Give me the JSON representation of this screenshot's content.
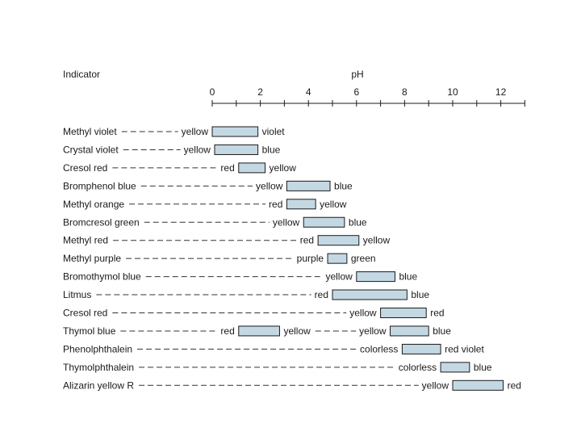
{
  "header": {
    "indicator_label": "Indicator",
    "ph_label": "pH"
  },
  "axis": {
    "min": 0,
    "max": 13,
    "ticks": [
      0,
      2,
      4,
      6,
      8,
      10,
      12
    ],
    "minor_step": 1
  },
  "colors": {
    "bar_fill": "#c4d8e4",
    "bar_stroke": "#1a1a1a"
  },
  "chart_data": {
    "type": "range",
    "xlabel": "pH",
    "xlim": [
      0,
      13
    ],
    "indicators": [
      {
        "name": "Methyl violet",
        "ranges": [
          {
            "from": 0.0,
            "to": 1.9,
            "low": "yellow",
            "high": "violet"
          }
        ]
      },
      {
        "name": "Crystal violet",
        "ranges": [
          {
            "from": 0.1,
            "to": 1.9,
            "low": "yellow",
            "high": "blue"
          }
        ]
      },
      {
        "name": "Cresol red",
        "ranges": [
          {
            "from": 1.1,
            "to": 2.2,
            "low": "red",
            "high": "yellow"
          }
        ]
      },
      {
        "name": "Bromphenol blue",
        "ranges": [
          {
            "from": 3.1,
            "to": 4.9,
            "low": "yellow",
            "high": "blue"
          }
        ]
      },
      {
        "name": "Methyl orange",
        "ranges": [
          {
            "from": 3.1,
            "to": 4.3,
            "low": "red",
            "high": "yellow"
          }
        ]
      },
      {
        "name": "Bromcresol green",
        "ranges": [
          {
            "from": 3.8,
            "to": 5.5,
            "low": "yellow",
            "high": "blue"
          }
        ]
      },
      {
        "name": "Methyl red",
        "ranges": [
          {
            "from": 4.4,
            "to": 6.1,
            "low": "red",
            "high": "yellow"
          }
        ]
      },
      {
        "name": "Methyl purple",
        "ranges": [
          {
            "from": 4.8,
            "to": 5.6,
            "low": "purple",
            "high": "green"
          }
        ]
      },
      {
        "name": "Bromothymol blue",
        "ranges": [
          {
            "from": 6.0,
            "to": 7.6,
            "low": "yellow",
            "high": "blue"
          }
        ]
      },
      {
        "name": "Litmus",
        "ranges": [
          {
            "from": 5.0,
            "to": 8.1,
            "low": "red",
            "high": "blue"
          }
        ]
      },
      {
        "name": "Cresol red",
        "ranges": [
          {
            "from": 7.0,
            "to": 8.9,
            "low": "yellow",
            "high": "red"
          }
        ]
      },
      {
        "name": "Thymol blue",
        "ranges": [
          {
            "from": 1.1,
            "to": 2.8,
            "low": "red",
            "high": "yellow"
          },
          {
            "from": 7.4,
            "to": 9.0,
            "low": "yellow",
            "high": "blue"
          }
        ]
      },
      {
        "name": "Phenolphthalein",
        "ranges": [
          {
            "from": 7.9,
            "to": 9.5,
            "low": "colorless",
            "high": "red violet"
          }
        ]
      },
      {
        "name": "Thymolphthalein",
        "ranges": [
          {
            "from": 9.5,
            "to": 10.7,
            "low": "colorless",
            "high": "blue"
          }
        ]
      },
      {
        "name": "Alizarin yellow R",
        "ranges": [
          {
            "from": 10.0,
            "to": 12.1,
            "low": "yellow",
            "high": "red"
          }
        ]
      }
    ]
  }
}
